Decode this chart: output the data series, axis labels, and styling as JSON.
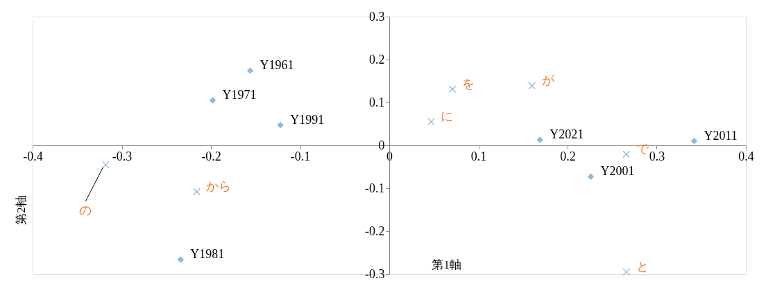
{
  "chart_data": {
    "type": "scatter",
    "xlabel": "第1軸",
    "ylabel": "第2軸",
    "xlim": [
      -0.4,
      0.4
    ],
    "xticks": [
      -0.4,
      -0.3,
      -0.2,
      -0.1,
      0,
      0.1,
      0.2,
      0.3,
      0.4
    ],
    "ylim": [
      -0.3,
      0.3
    ],
    "yticks": [
      -0.3,
      -0.2,
      -0.1,
      0,
      0.1,
      0.2,
      0.3
    ],
    "grid": false,
    "series": [
      {
        "color": "#5b9bd5",
        "marker": "diamond",
        "x": [
          -0.156,
          -0.198,
          -0.122,
          -0.234,
          0.169,
          0.342,
          0.226
        ],
        "values": [
          0.174,
          0.105,
          0.047,
          -0.266,
          0.013,
          0.01,
          -0.073
        ],
        "value_labels": [
          "Y1961",
          "Y1971",
          "Y1991",
          "Y1981",
          "Y2021",
          "Y2011",
          "Y2001"
        ]
      },
      {
        "color": "#5b9bd5",
        "marker": "cross",
        "x": [
          0.071,
          0.16,
          0.047,
          0.266,
          -0.216,
          -0.318,
          0.266
        ],
        "values": [
          0.131,
          0.139,
          0.055,
          -0.021,
          -0.108,
          -0.045,
          -0.295
        ],
        "value_labels": [
          "を",
          "が",
          "に",
          "で",
          "から",
          null,
          "と"
        ]
      }
    ],
    "annotations": [
      {
        "text": "の",
        "x": -0.318,
        "y": -0.045
      }
    ]
  }
}
